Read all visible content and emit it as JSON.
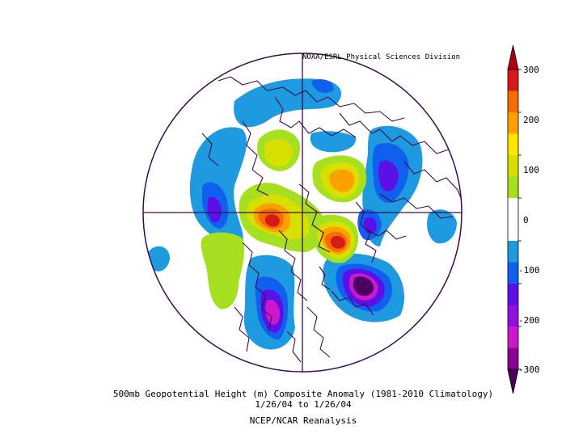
{
  "credit": "NOAA/ESRL Physical Sciences Division",
  "caption": {
    "line1": "500mb Geopotential Height (m) Composite Anomaly (1981-2010 Climatology)",
    "line2": "1/26/04   to 1/26/04",
    "line3": "NCEP/NCAR Reanalysis"
  },
  "colorbar": {
    "labels": [
      "300",
      "200",
      "100",
      "0",
      "-100",
      "-200",
      "-300"
    ],
    "colors": [
      "#d7191c",
      "#f46d00",
      "#ffa000",
      "#ffe600",
      "#d8e000",
      "#a6e020",
      "#ffffff",
      "#ffffff",
      "#1e9be0",
      "#1060f0",
      "#5c10e8",
      "#9010e0",
      "#cc18cc",
      "#8a0090"
    ]
  },
  "anomaly_colors": {
    "neg_100": "#1e9be0",
    "neg_150": "#1060f0",
    "neg_200": "#5c10e8",
    "neg_250": "#cc18cc",
    "neg_300": "#4a0060",
    "pos_100": "#a6e020",
    "pos_150": "#d8e000",
    "pos_200": "#ffa000",
    "pos_250": "#f46d00",
    "pos_300": "#d7191c"
  }
}
